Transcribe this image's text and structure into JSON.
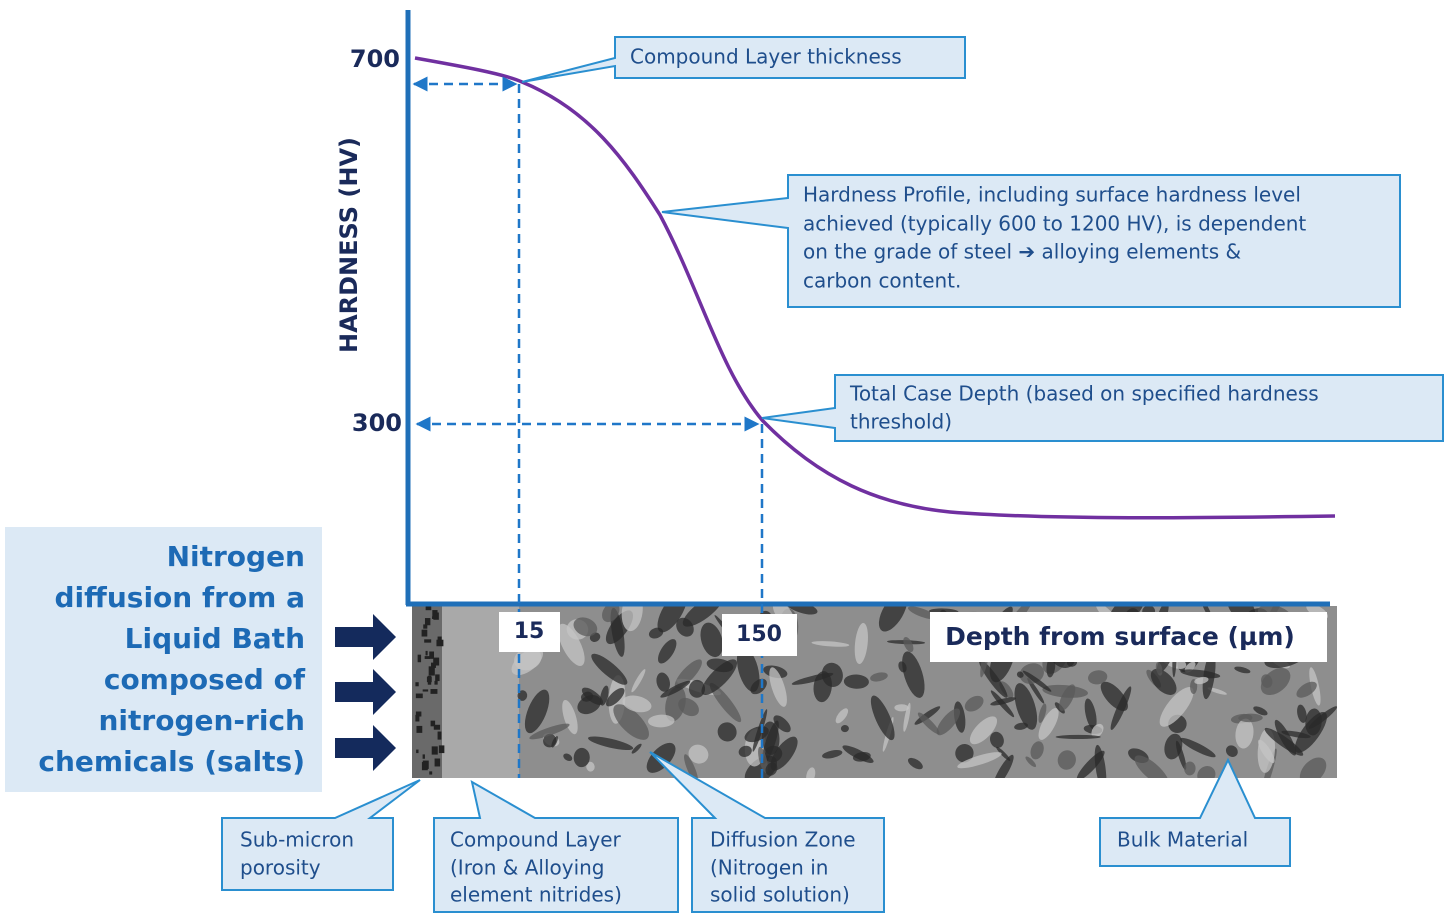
{
  "y_axis": {
    "title": "HARDNESS (HV)",
    "ticks": [
      "700",
      "300"
    ]
  },
  "x_axis": {
    "title": "Depth from surface (µm)",
    "ticks": [
      "15",
      "150"
    ]
  },
  "callouts": [
    {
      "lines": [
        "Compound Layer thickness"
      ]
    },
    {
      "lines": [
        "Hardness Profile, including surface hardness level",
        "achieved (typically 600 to 1200 HV), is dependent",
        "on the grade of steel ➔ alloying elements &",
        "carbon content."
      ]
    },
    {
      "lines": [
        "Total Case Depth (based on specified hardness",
        "threshold)"
      ]
    }
  ],
  "side_note": {
    "lines": [
      "Nitrogen",
      "diffusion from a",
      "Liquid Bath",
      "composed of",
      "nitrogen-rich",
      "chemicals (salts)"
    ]
  },
  "zones": [
    {
      "lines": [
        "Sub-micron",
        "porosity"
      ]
    },
    {
      "lines": [
        "Compound Layer",
        "(Iron & Alloying",
        "element nitrides)"
      ]
    },
    {
      "lines": [
        "Diffusion Zone",
        "(Nitrogen in",
        "solid solution)"
      ]
    },
    {
      "lines": [
        "Bulk Material"
      ]
    }
  ]
}
